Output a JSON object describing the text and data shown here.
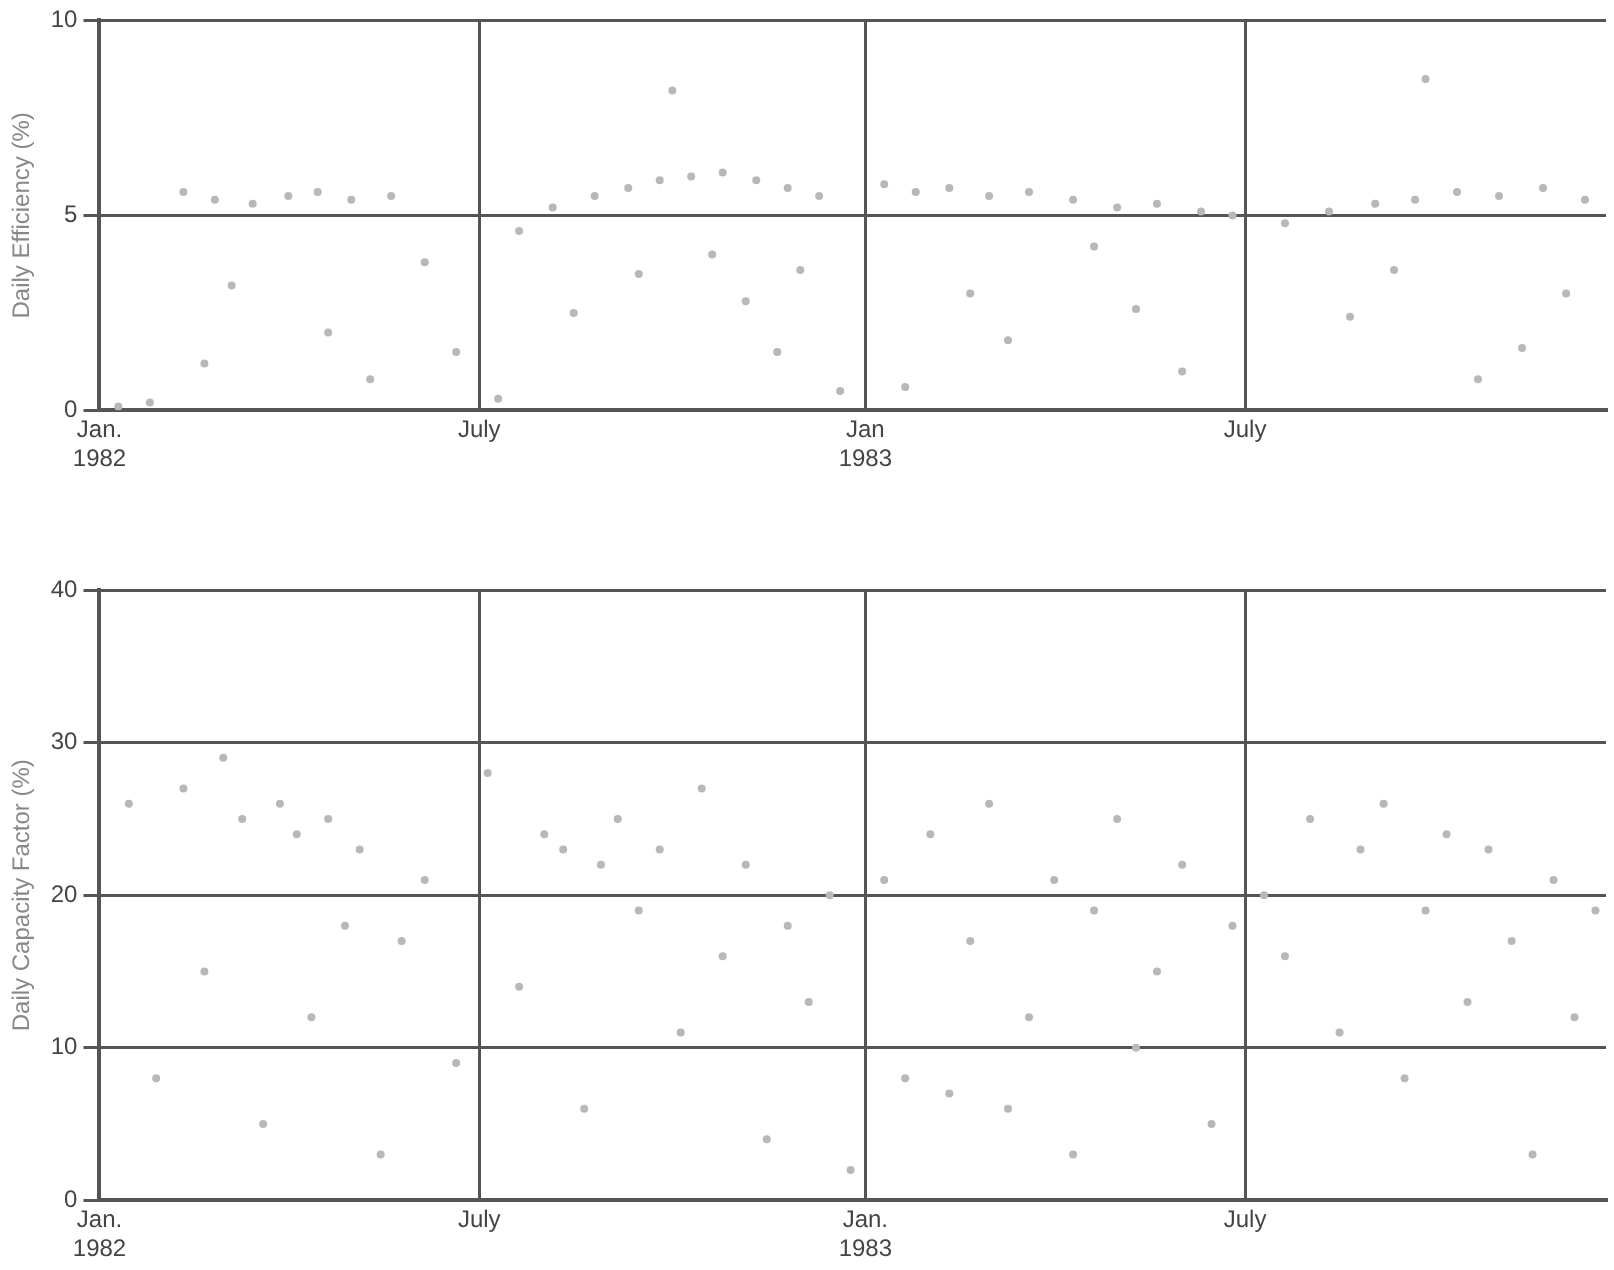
{
  "chart_data": [
    {
      "type": "scatter",
      "ylabel": "Daily Efficiency (%)",
      "color": "#b8b8b8",
      "marker": "circle",
      "grid": true,
      "xlim": [
        "1982-01-01",
        "1983-12-20"
      ],
      "xticks": [
        {
          "value": "1982-01-01",
          "label": "Jan.\n1982"
        },
        {
          "value": "1982-07-01",
          "label": "July"
        },
        {
          "value": "1983-01-01",
          "label": "Jan\n1983"
        },
        {
          "value": "1983-07-01",
          "label": "July"
        }
      ],
      "ylim": [
        0,
        10
      ],
      "yticks": [
        0,
        5,
        10
      ],
      "x": [
        "1982-01-10",
        "1982-01-25",
        "1982-02-10",
        "1982-02-20",
        "1982-02-25",
        "1982-03-05",
        "1982-03-15",
        "1982-04-01",
        "1982-04-15",
        "1982-04-20",
        "1982-05-01",
        "1982-05-10",
        "1982-05-20",
        "1982-06-05",
        "1982-06-20",
        "1982-07-10",
        "1982-07-20",
        "1982-08-05",
        "1982-08-15",
        "1982-08-25",
        "1982-09-10",
        "1982-09-15",
        "1982-09-25",
        "1982-10-01",
        "1982-10-10",
        "1982-10-20",
        "1982-10-25",
        "1982-11-05",
        "1982-11-10",
        "1982-11-20",
        "1982-11-25",
        "1982-12-01",
        "1982-12-10",
        "1982-12-20",
        "1983-01-10",
        "1983-01-20",
        "1983-01-25",
        "1983-02-10",
        "1983-02-20",
        "1983-03-01",
        "1983-03-10",
        "1983-03-20",
        "1983-04-10",
        "1983-04-20",
        "1983-05-01",
        "1983-05-10",
        "1983-05-20",
        "1983-06-01",
        "1983-06-10",
        "1983-06-25",
        "1983-07-20",
        "1983-08-10",
        "1983-08-20",
        "1983-09-01",
        "1983-09-10",
        "1983-09-20",
        "1983-09-25",
        "1983-10-10",
        "1983-10-20",
        "1983-10-30",
        "1983-11-10",
        "1983-11-20",
        "1983-12-01",
        "1983-12-10"
      ],
      "values": [
        0.1,
        0.2,
        5.6,
        1.2,
        5.4,
        3.2,
        5.3,
        5.5,
        5.6,
        2.0,
        5.4,
        0.8,
        5.5,
        3.8,
        1.5,
        0.3,
        4.6,
        5.2,
        2.5,
        5.5,
        5.7,
        3.5,
        5.9,
        8.2,
        6.0,
        4.0,
        6.1,
        2.8,
        5.9,
        1.5,
        5.7,
        3.6,
        5.5,
        0.5,
        5.8,
        0.6,
        5.6,
        5.7,
        3.0,
        5.5,
        1.8,
        5.6,
        5.4,
        4.2,
        5.2,
        2.6,
        5.3,
        1.0,
        5.1,
        5.0,
        4.8,
        5.1,
        2.4,
        5.3,
        3.6,
        5.4,
        8.5,
        5.6,
        0.8,
        5.5,
        1.6,
        5.7,
        3.0,
        5.4
      ]
    },
    {
      "type": "scatter",
      "ylabel": "Daily Capacity Factor (%)",
      "color": "#b8b8b8",
      "marker": "circle",
      "grid": true,
      "xlim": [
        "1982-01-01",
        "1983-12-20"
      ],
      "xticks": [
        {
          "value": "1982-01-01",
          "label": "Jan.\n1982"
        },
        {
          "value": "1982-07-01",
          "label": "July"
        },
        {
          "value": "1983-01-01",
          "label": "Jan.\n1983"
        },
        {
          "value": "1983-07-01",
          "label": "July"
        }
      ],
      "ylim": [
        0,
        40
      ],
      "yticks": [
        0,
        10,
        20,
        30,
        40
      ],
      "x": [
        "1982-01-15",
        "1982-01-28",
        "1982-02-10",
        "1982-02-20",
        "1982-03-01",
        "1982-03-10",
        "1982-03-20",
        "1982-03-28",
        "1982-04-05",
        "1982-04-12",
        "1982-04-20",
        "1982-04-28",
        "1982-05-05",
        "1982-05-15",
        "1982-05-25",
        "1982-06-05",
        "1982-06-20",
        "1982-07-05",
        "1982-07-20",
        "1982-08-01",
        "1982-08-10",
        "1982-08-20",
        "1982-08-28",
        "1982-09-05",
        "1982-09-15",
        "1982-09-25",
        "1982-10-05",
        "1982-10-15",
        "1982-10-25",
        "1982-11-05",
        "1982-11-15",
        "1982-11-25",
        "1982-12-05",
        "1982-12-15",
        "1982-12-25",
        "1983-01-10",
        "1983-01-20",
        "1983-02-01",
        "1983-02-10",
        "1983-02-20",
        "1983-03-01",
        "1983-03-10",
        "1983-03-20",
        "1983-04-01",
        "1983-04-10",
        "1983-04-20",
        "1983-05-01",
        "1983-05-10",
        "1983-05-20",
        "1983-06-01",
        "1983-06-15",
        "1983-06-25",
        "1983-07-10",
        "1983-07-20",
        "1983-08-01",
        "1983-08-15",
        "1983-08-25",
        "1983-09-05",
        "1983-09-15",
        "1983-09-25",
        "1983-10-05",
        "1983-10-15",
        "1983-10-25",
        "1983-11-05",
        "1983-11-15",
        "1983-11-25",
        "1983-12-05",
        "1983-12-15"
      ],
      "values": [
        26,
        8,
        27,
        15,
        29,
        25,
        5,
        26,
        24,
        12,
        25,
        18,
        23,
        3,
        17,
        21,
        9,
        28,
        14,
        24,
        23,
        6,
        22,
        25,
        19,
        23,
        11,
        27,
        16,
        22,
        4,
        18,
        13,
        20,
        2,
        21,
        8,
        24,
        7,
        17,
        26,
        6,
        12,
        21,
        3,
        19,
        25,
        10,
        15,
        22,
        5,
        18,
        20,
        16,
        25,
        11,
        23,
        26,
        8,
        19,
        24,
        13,
        23,
        17,
        3,
        21,
        12,
        19
      ]
    }
  ]
}
